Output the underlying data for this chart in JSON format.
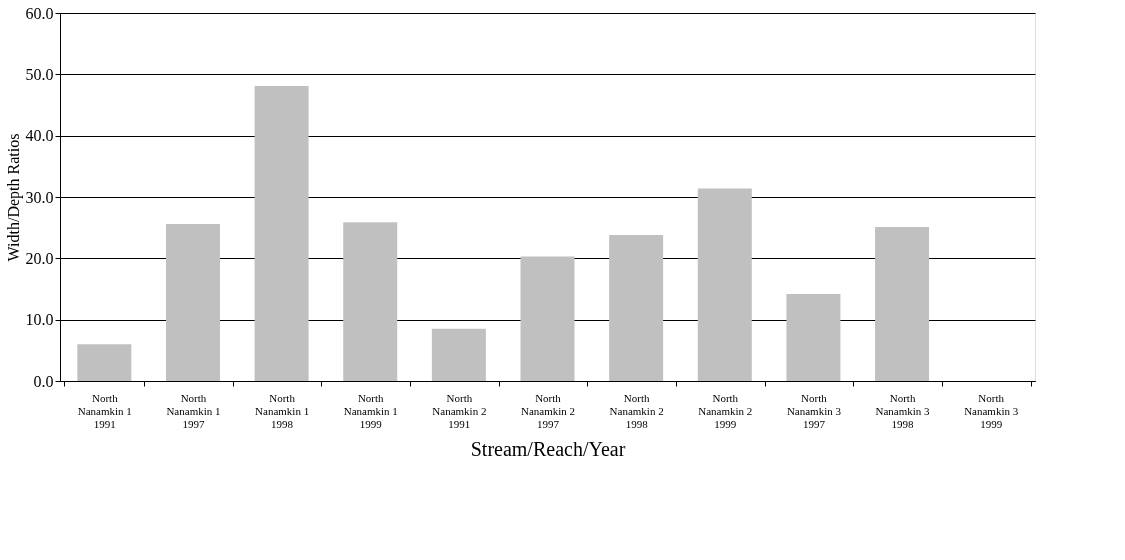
{
  "chart_data": {
    "type": "bar",
    "xlabel": "Stream/Reach/Year",
    "ylabel": "Width/Depth Ratios",
    "categories": [
      "North\nNanamkin 1\n1991",
      "North\nNanamkin 1\n1997",
      "North\nNanamkin 1\n1998",
      "North\nNanamkin 1\n1999",
      "North\nNanamkin 2\n1991",
      "North\nNanamkin 2\n1997",
      "North\nNanamkin 2\n1998",
      "North\nNanamkin 2\n1999",
      "North\nNanamkin 3\n1997",
      "North\nNanamkin 3\n1998",
      "North\nNanamkin 3\n1999"
    ],
    "values": [
      6.0,
      25.6,
      48.1,
      25.9,
      8.5,
      20.3,
      23.8,
      31.4,
      14.2,
      25.1,
      0
    ],
    "color": "#c0c0c0",
    "ylim": [
      0,
      60
    ],
    "yticks": [
      {
        "value": 0,
        "label": "0.0"
      },
      {
        "value": 10,
        "label": "10.0"
      },
      {
        "value": 20,
        "label": "20.0"
      },
      {
        "value": 30,
        "label": "30.0"
      },
      {
        "value": 40,
        "label": "40.0"
      },
      {
        "value": 50,
        "label": "50.0"
      },
      {
        "value": 60,
        "label": "60.0"
      }
    ],
    "grid": "y"
  }
}
